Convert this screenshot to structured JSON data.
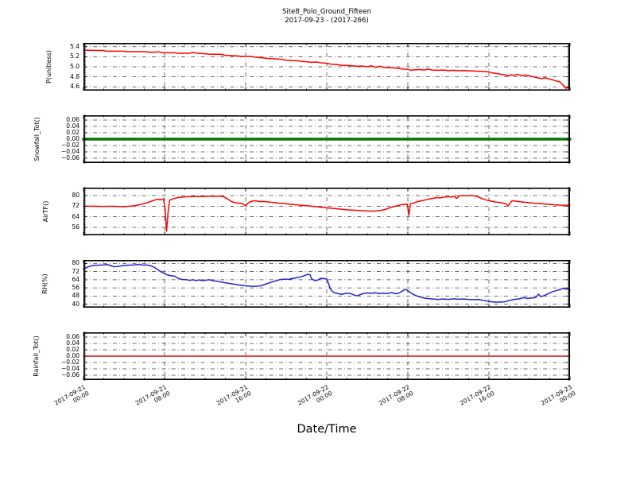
{
  "figure": {
    "title_line1": "Site8_Polo_Ground_Fifteen",
    "title_line2": "2017-09-23 - (2017-266)",
    "xlabel": "Date/Time"
  },
  "colors": {
    "red": "#ff0000",
    "green": "#008000",
    "blue": "#2424cc",
    "grid": "#3d3d3d",
    "frame": "#000000",
    "background": "#ffffff"
  },
  "x_axis": {
    "range_hours": [
      0,
      48
    ],
    "major_tick_hours": [
      0,
      8,
      16,
      24,
      32,
      40,
      48
    ],
    "minor_tick_step_hours": 2,
    "tick_labels": [
      {
        "date": "2017-09-21",
        "time": "00:00"
      },
      {
        "date": "2017-09-21",
        "time": "08:00"
      },
      {
        "date": "2017-09-21",
        "time": "16:00"
      },
      {
        "date": "2017-09-22",
        "time": "00:00"
      },
      {
        "date": "2017-09-22",
        "time": "08:00"
      },
      {
        "date": "2017-09-22",
        "time": "16:00"
      },
      {
        "date": "2017-09-23",
        "time": "00:00"
      }
    ]
  },
  "chart_data": [
    {
      "type": "line",
      "ylabel": "P(unitless)",
      "color": "red",
      "linewidth": 1.5,
      "ylim": [
        4.525,
        5.475
      ],
      "yticks": [
        5.4,
        5.2,
        5.0,
        4.8,
        4.6
      ],
      "ytick_labels": [
        "5.4",
        "5.2",
        "5.0",
        "4.8",
        "4.6"
      ],
      "y_minor_step": 0.02,
      "grid_over_line": false,
      "ylabel_cx": 62,
      "x": [
        0,
        2,
        2.2,
        4,
        4.2,
        6,
        6.5,
        7.2,
        7.4,
        7.8,
        9,
        9.3,
        10.5,
        10.8,
        11.2,
        12,
        12.5,
        13.5,
        14,
        15,
        15.5,
        16.5,
        17,
        18,
        18.5,
        19.5,
        20,
        21,
        21.5,
        22,
        22.5,
        23,
        23.4,
        24,
        24.5,
        25,
        25.5,
        26,
        26.5,
        27,
        27.5,
        28,
        28.4,
        28.8,
        29.2,
        29.6,
        30,
        30.5,
        31,
        31.5,
        32,
        32.3,
        32.7,
        33.2,
        33.6,
        34,
        34.4,
        35,
        35.5,
        36,
        36.5,
        37,
        37.5,
        38,
        38.5,
        39,
        39.5,
        40,
        40.3,
        40.8,
        41.2,
        41.6,
        41.9,
        42.2,
        42.5,
        42.8,
        43.2,
        43.6,
        44,
        44.4,
        44.8,
        45.2,
        45.5,
        45.9,
        46.3,
        46.6,
        47,
        47.2,
        47.4,
        47.5,
        47.6,
        47.8,
        48
      ],
      "values": [
        5.33,
        5.325,
        5.31,
        5.31,
        5.3,
        5.3,
        5.29,
        5.29,
        5.3,
        5.28,
        5.28,
        5.27,
        5.27,
        5.285,
        5.27,
        5.26,
        5.25,
        5.25,
        5.23,
        5.22,
        5.21,
        5.205,
        5.19,
        5.17,
        5.16,
        5.15,
        5.13,
        5.12,
        5.11,
        5.1,
        5.09,
        5.095,
        5.08,
        5.07,
        5.05,
        5.045,
        5.03,
        5.025,
        5.02,
        5.01,
        5.015,
        5.0,
        5.02,
        4.99,
        5.01,
        4.99,
        4.985,
        4.98,
        4.97,
        4.955,
        4.95,
        4.93,
        4.94,
        4.945,
        4.935,
        4.955,
        4.935,
        4.93,
        4.935,
        4.925,
        4.93,
        4.92,
        4.925,
        4.92,
        4.915,
        4.91,
        4.905,
        4.9,
        4.88,
        4.865,
        4.85,
        4.84,
        4.82,
        4.84,
        4.83,
        4.85,
        4.825,
        4.835,
        4.82,
        4.8,
        4.78,
        4.765,
        4.78,
        4.76,
        4.74,
        4.72,
        4.7,
        4.66,
        4.62,
        4.6,
        4.57,
        4.585,
        4.585
      ]
    },
    {
      "type": "line",
      "ylabel": "Snowfall_Tot()",
      "color": "green",
      "linewidth": 3.6,
      "ylim": [
        -0.075,
        0.075
      ],
      "yticks": [
        0.06,
        0.04,
        0.02,
        0.0,
        -0.02,
        -0.04,
        -0.06
      ],
      "ytick_labels": [
        "0.06",
        "0.04",
        "0.02",
        "0.00",
        "−0.02",
        "−0.04",
        "−0.06"
      ],
      "y_minor_step": 0.005,
      "grid_over_line": true,
      "ylabel_cx": 47,
      "x": [
        0,
        48
      ],
      "values": [
        0.0,
        0.0
      ]
    },
    {
      "type": "line",
      "ylabel": "AirTF()",
      "color": "red",
      "linewidth": 1.5,
      "ylim": [
        50,
        86
      ],
      "yticks": [
        80,
        72,
        64,
        56
      ],
      "ytick_labels": [
        "80",
        "72",
        "64",
        "56"
      ],
      "y_minor_step": 1,
      "grid_over_line": false,
      "ylabel_cx": 58,
      "x": [
        0,
        1,
        2,
        3,
        3.8,
        4.3,
        5,
        5.5,
        6,
        6.5,
        7,
        7.3,
        7.6,
        7.9,
        8.05,
        8.2,
        8.35,
        8.5,
        8.8,
        9.2,
        9.6,
        10,
        10.5,
        11,
        11.5,
        12,
        12.5,
        13,
        13.4,
        13.8,
        14.2,
        14.6,
        15,
        15.4,
        15.7,
        16,
        16.3,
        16.6,
        17,
        17.4,
        17.8,
        18.2,
        19,
        20,
        21,
        22,
        23,
        24,
        25,
        26,
        27,
        28,
        28.6,
        29.2,
        29.8,
        30.3,
        30.8,
        31.3,
        31.7,
        31.95,
        32.1,
        32.25,
        32.6,
        33,
        33.5,
        34,
        34.4,
        34.8,
        35.2,
        35.6,
        36,
        36.3,
        36.6,
        36.8,
        37.1,
        37.5,
        37.9,
        38.3,
        38.7,
        39,
        39.4,
        39.8,
        40.2,
        40.6,
        41,
        41.4,
        41.7,
        41.9,
        42.1,
        42.3,
        42.6,
        43,
        43.5,
        44,
        44.5,
        45,
        45.5,
        46,
        46.5,
        47,
        47.5,
        48
      ],
      "values": [
        72,
        72,
        71.8,
        72,
        71.5,
        71.8,
        72.3,
        73,
        74,
        75.2,
        76.5,
        77.3,
        76.8,
        77.5,
        70,
        53,
        68,
        76.5,
        77.5,
        78.3,
        78.8,
        79,
        79.2,
        79.3,
        79.2,
        79.4,
        79.5,
        79.5,
        79.6,
        79.2,
        77.5,
        75.5,
        74.5,
        74.2,
        73.8,
        72.3,
        74.8,
        75.8,
        76,
        75.4,
        75.6,
        75.2,
        74.5,
        73.8,
        73,
        72.4,
        71.6,
        70.8,
        70,
        69.3,
        68.8,
        68.4,
        68.3,
        68.6,
        69.6,
        71,
        72,
        73,
        73.4,
        73.5,
        65,
        73.8,
        74.5,
        75.5,
        76.3,
        77.2,
        77.8,
        78.4,
        78.2,
        78.9,
        79.2,
        78.9,
        79.6,
        77.8,
        79.8,
        80,
        79.8,
        80.2,
        79.5,
        78.8,
        77.5,
        76.5,
        75.8,
        75.2,
        74.8,
        74.4,
        73.8,
        72.2,
        74.5,
        76.2,
        75.8,
        75.4,
        75,
        74.6,
        74.2,
        73.9,
        73.6,
        73.3,
        73,
        72.8,
        72.7,
        72.8
      ]
    },
    {
      "type": "line",
      "ylabel": "RH(%)",
      "color": "blue",
      "linewidth": 1.5,
      "ylim": [
        36.5,
        83.5
      ],
      "yticks": [
        80,
        72,
        64,
        56,
        48,
        40
      ],
      "ytick_labels": [
        "80",
        "72",
        "64",
        "56",
        "48",
        "40"
      ],
      "y_minor_step": 1,
      "grid_over_line": false,
      "ylabel_cx": 57,
      "x": [
        0,
        0.4,
        0.8,
        1.2,
        1.6,
        2,
        2.3,
        2.6,
        3,
        3.3,
        3.7,
        4.1,
        4.5,
        5,
        5.4,
        5.8,
        6.2,
        6.6,
        7,
        7.4,
        7.8,
        8.2,
        8.6,
        9,
        9.2,
        9.5,
        9.8,
        10.2,
        10.5,
        10.8,
        11.1,
        11.4,
        11.7,
        12,
        12.4,
        12.8,
        13.2,
        13.6,
        14,
        14.5,
        15,
        15.5,
        16,
        16.5,
        17,
        17.5,
        18,
        18.5,
        19,
        19.4,
        19.8,
        20.2,
        20.6,
        21,
        21.4,
        21.8,
        22.1,
        22.35,
        22.5,
        22.8,
        23.1,
        23.4,
        23.7,
        24,
        24.15,
        24.35,
        24.6,
        24.9,
        25.2,
        25.5,
        25.8,
        26.1,
        26.4,
        26.7,
        27,
        27.3,
        27.6,
        28,
        28.4,
        28.8,
        29.2,
        29.6,
        30,
        30.4,
        30.8,
        31.1,
        31.4,
        31.7,
        31.9,
        32.2,
        32.5,
        32.8,
        33.2,
        33.6,
        34,
        34.5,
        35,
        35.5,
        36,
        36.5,
        37,
        37.5,
        38,
        38.5,
        39,
        39.4,
        39.8,
        40.2,
        40.6,
        41,
        41.5,
        42,
        42.5,
        43,
        43.4,
        43.8,
        44.2,
        44.6,
        44.9,
        45.1,
        45.4,
        45.8,
        46.2,
        46.6,
        47,
        47.3,
        47.6,
        47.8,
        48
      ],
      "values": [
        74.5,
        76.5,
        77.8,
        78.2,
        78.4,
        78.6,
        79,
        78.2,
        76.8,
        77,
        77.6,
        78.2,
        78.4,
        78.6,
        79,
        78.6,
        78.5,
        78,
        76.2,
        73.5,
        71,
        69,
        68,
        67.5,
        66.2,
        64.8,
        64.2,
        64,
        63.4,
        64,
        63.2,
        63.8,
        63.2,
        63.4,
        64,
        63,
        62.4,
        61.8,
        61,
        60.2,
        59.4,
        58.6,
        58,
        57.6,
        57.5,
        58,
        59.8,
        61.5,
        63,
        64.2,
        64.6,
        64.4,
        65.2,
        66,
        66.8,
        68,
        69.5,
        68.8,
        65,
        63.2,
        63.6,
        65.4,
        65.2,
        64.8,
        61,
        55,
        52,
        50.8,
        50.2,
        49.6,
        50.4,
        50.8,
        50.2,
        49,
        48.2,
        49.4,
        50.4,
        51,
        50.6,
        51.2,
        50.4,
        50.8,
        50.4,
        51.4,
        50.2,
        50.8,
        52.5,
        54.5,
        53.8,
        51.8,
        49.8,
        48.4,
        47,
        46,
        45.4,
        45,
        44.6,
        45,
        44.6,
        45.2,
        44.8,
        45,
        44.6,
        44.4,
        44.6,
        43.8,
        43,
        42.4,
        42,
        42,
        42.2,
        43.6,
        44.6,
        45.2,
        46.4,
        45.6,
        46,
        46.4,
        49.8,
        47.4,
        48.2,
        50,
        52,
        53.2,
        54.2,
        55.6,
        54.8,
        55,
        53.4
      ]
    },
    {
      "type": "line",
      "ylabel": "Rainfall_Tot()",
      "color": "red",
      "linewidth": 1.4,
      "ylim": [
        -0.075,
        0.075
      ],
      "yticks": [
        0.06,
        0.04,
        0.02,
        0.0,
        -0.02,
        -0.04,
        -0.06
      ],
      "ytick_labels": [
        "0.06",
        "0.04",
        "0.02",
        "0.00",
        "−0.02",
        "−0.04",
        "−0.06"
      ],
      "y_minor_step": 0.005,
      "grid_over_line": true,
      "ylabel_cx": 46,
      "x": [
        0,
        48
      ],
      "values": [
        0.0,
        0.0
      ]
    }
  ]
}
